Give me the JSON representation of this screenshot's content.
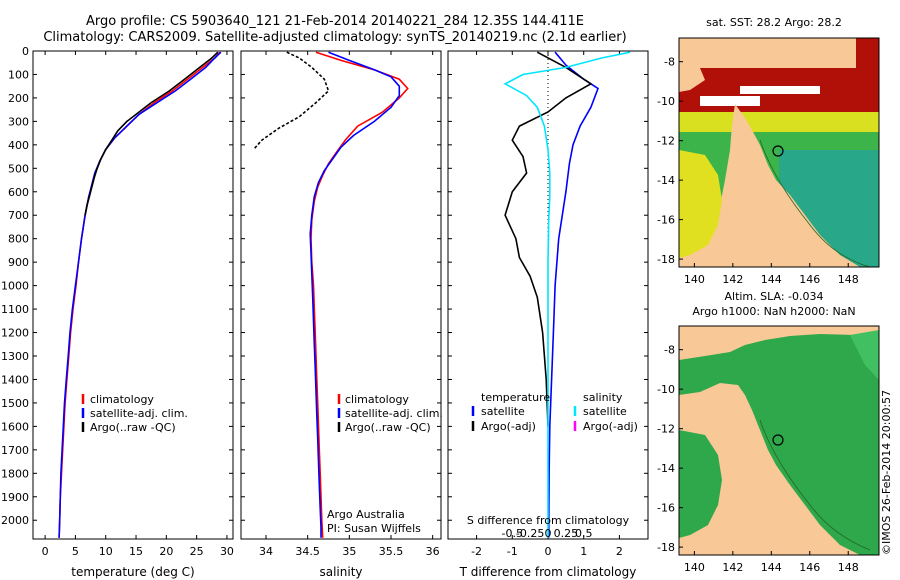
{
  "header": {
    "title_line1": "Argo profile: CS 5903640_121 21-Feb-2014 20140221_284 12.35S 144.411E",
    "title_line2": "Climatology: CARS2009. Satellite-adjusted climatology: synTS_20140219.nc (2.1d earlier)"
  },
  "colors": {
    "climatology": "#ff0000",
    "satellite": "#0000ff",
    "argo": "#000000",
    "salinity_satellite": "#00e5ff",
    "salinity_argo": "#ff00ff",
    "land": "#f8c896"
  },
  "chart_data": [
    {
      "type": "line",
      "xlabel": "temperature (deg C)",
      "xlim": [
        -2,
        31
      ],
      "ylim": [
        0,
        2080
      ],
      "xticks": [
        "0",
        "5",
        "10",
        "15",
        "20",
        "25",
        "30"
      ],
      "yticks": [
        "0",
        "100",
        "200",
        "300",
        "400",
        "500",
        "600",
        "700",
        "800",
        "900",
        "1000",
        "1100",
        "1200",
        "1300",
        "1400",
        "1500",
        "1600",
        "1700",
        "1800",
        "1900",
        "2000"
      ],
      "legend": [
        "climatology",
        "satellite-adj. clim.",
        "Argo(..raw -QC)"
      ],
      "series": [
        {
          "name": "climatology",
          "points": [
            [
              28.8,
              5
            ],
            [
              28,
              30
            ],
            [
              26,
              70
            ],
            [
              23.5,
              120
            ],
            [
              21,
              170
            ],
            [
              18,
              220
            ],
            [
              15.5,
              270
            ],
            [
              13.5,
              320
            ],
            [
              11.5,
              370
            ],
            [
              10,
              420
            ],
            [
              9,
              470
            ],
            [
              8.3,
              520
            ],
            [
              7.8,
              570
            ],
            [
              7.2,
              620
            ],
            [
              6.6,
              700
            ],
            [
              6,
              800
            ],
            [
              5.5,
              900
            ],
            [
              5.1,
              1000
            ],
            [
              4.6,
              1100
            ],
            [
              4.2,
              1200
            ],
            [
              3.9,
              1300
            ],
            [
              3.6,
              1400
            ],
            [
              3.3,
              1500
            ],
            [
              3.1,
              1600
            ],
            [
              2.9,
              1700
            ],
            [
              2.7,
              1800
            ],
            [
              2.5,
              1900
            ],
            [
              2.4,
              2000
            ],
            [
              2.3,
              2075
            ]
          ]
        },
        {
          "name": "satellite-adj. clim.",
          "points": [
            [
              29,
              5
            ],
            [
              28,
              30
            ],
            [
              26.5,
              70
            ],
            [
              24,
              120
            ],
            [
              21.5,
              170
            ],
            [
              18.5,
              220
            ],
            [
              15.5,
              270
            ],
            [
              13.5,
              320
            ],
            [
              11.5,
              370
            ],
            [
              10,
              420
            ],
            [
              9,
              470
            ],
            [
              8.2,
              520
            ],
            [
              7.7,
              570
            ],
            [
              7.2,
              620
            ],
            [
              6.6,
              700
            ],
            [
              6,
              800
            ],
            [
              5.5,
              900
            ],
            [
              5,
              1000
            ],
            [
              4.5,
              1100
            ],
            [
              4.1,
              1200
            ],
            [
              3.8,
              1300
            ],
            [
              3.5,
              1400
            ],
            [
              3.2,
              1500
            ],
            [
              3,
              1600
            ],
            [
              2.8,
              1700
            ],
            [
              2.6,
              1800
            ],
            [
              2.5,
              1900
            ],
            [
              2.4,
              2000
            ],
            [
              2.3,
              2075
            ]
          ]
        },
        {
          "name": "Argo(..raw -QC)",
          "points": [
            [
              28.5,
              5
            ],
            [
              27.5,
              30
            ],
            [
              25.5,
              70
            ],
            [
              23,
              120
            ],
            [
              20.5,
              170
            ],
            [
              17.5,
              220
            ],
            [
              15.5,
              260
            ],
            [
              13.5,
              300
            ],
            [
              12,
              340
            ],
            [
              11,
              380
            ],
            [
              10,
              420
            ],
            [
              9.2,
              460
            ],
            [
              8.6,
              500
            ],
            [
              8.1,
              540
            ],
            [
              7.7,
              580
            ],
            [
              7.3,
              620
            ],
            [
              6.9,
              660
            ],
            [
              6.6,
              700
            ]
          ]
        }
      ]
    },
    {
      "type": "line",
      "xlabel": "salinity",
      "xlim": [
        33.7,
        36.1
      ],
      "ylim": [
        0,
        2080
      ],
      "xticks": [
        "34",
        "34.5",
        "35",
        "35.5",
        "36"
      ],
      "legend": [
        "climatology",
        "satellite-adj. clim.",
        "Argo(..raw -QC)"
      ],
      "annotations": [
        "Argo Australia",
        "PI: Susan Wijffels"
      ],
      "series": [
        {
          "name": "climatology",
          "points": [
            [
              34.6,
              5
            ],
            [
              34.9,
              40
            ],
            [
              35.3,
              80
            ],
            [
              35.6,
              120
            ],
            [
              35.7,
              160
            ],
            [
              35.6,
              200
            ],
            [
              35.4,
              260
            ],
            [
              35.1,
              320
            ],
            [
              34.95,
              380
            ],
            [
              34.85,
              430
            ],
            [
              34.75,
              480
            ],
            [
              34.68,
              530
            ],
            [
              34.62,
              580
            ],
            [
              34.58,
              640
            ],
            [
              34.55,
              720
            ],
            [
              34.54,
              800
            ],
            [
              34.55,
              900
            ],
            [
              34.57,
              1000
            ],
            [
              34.58,
              1100
            ],
            [
              34.59,
              1200
            ],
            [
              34.6,
              1300
            ],
            [
              34.61,
              1400
            ],
            [
              34.62,
              1500
            ],
            [
              34.63,
              1600
            ],
            [
              34.64,
              1700
            ],
            [
              34.65,
              1800
            ],
            [
              34.66,
              1900
            ],
            [
              34.67,
              2000
            ],
            [
              34.68,
              2075
            ]
          ]
        },
        {
          "name": "satellite-adj. clim.",
          "points": [
            [
              34.75,
              5
            ],
            [
              35,
              40
            ],
            [
              35.3,
              80
            ],
            [
              35.5,
              110
            ],
            [
              35.6,
              150
            ],
            [
              35.6,
              190
            ],
            [
              35.5,
              240
            ],
            [
              35.3,
              300
            ],
            [
              35.05,
              360
            ],
            [
              34.9,
              410
            ],
            [
              34.8,
              460
            ],
            [
              34.7,
              510
            ],
            [
              34.63,
              560
            ],
            [
              34.58,
              620
            ],
            [
              34.55,
              700
            ],
            [
              34.53,
              780
            ],
            [
              34.54,
              860
            ],
            [
              34.55,
              950
            ],
            [
              34.56,
              1050
            ],
            [
              34.57,
              1150
            ],
            [
              34.58,
              1250
            ],
            [
              34.59,
              1350
            ],
            [
              34.6,
              1450
            ],
            [
              34.61,
              1550
            ],
            [
              34.62,
              1650
            ],
            [
              34.63,
              1750
            ],
            [
              34.64,
              1850
            ],
            [
              34.65,
              1950
            ],
            [
              34.66,
              2030
            ],
            [
              34.66,
              2075
            ]
          ]
        },
        {
          "name": "Argo(..raw -QC)",
          "points": [
            [
              34.25,
              5
            ],
            [
              34.4,
              30
            ],
            [
              34.55,
              70
            ],
            [
              34.7,
              120
            ],
            [
              34.75,
              170
            ],
            [
              34.6,
              220
            ],
            [
              34.4,
              280
            ],
            [
              34.15,
              330
            ],
            [
              33.95,
              380
            ],
            [
              33.85,
              420
            ]
          ]
        }
      ]
    },
    {
      "type": "line",
      "xlabel": "T difference from climatology",
      "xlabel_top": "S difference from climatology",
      "xlim": [
        -2.8,
        2.8
      ],
      "ylim": [
        0,
        2080
      ],
      "xticks": [
        "-2",
        "-1",
        "0",
        "1",
        "2"
      ],
      "xticks_top": [
        "-0.5",
        "-0.25",
        "0",
        "0.25",
        "0.5"
      ],
      "legend_groups": [
        {
          "heading": "temperature",
          "items": [
            "satellite",
            "Argo(-adj)"
          ]
        },
        {
          "heading": "salinity",
          "items": [
            "satellite",
            "Argo(-adj)"
          ]
        }
      ],
      "series": [
        {
          "name": "temperature satellite",
          "points": [
            [
              0.2,
              5
            ],
            [
              0.5,
              60
            ],
            [
              1,
              120
            ],
            [
              1.4,
              160
            ],
            [
              1.2,
              240
            ],
            [
              0.9,
              320
            ],
            [
              0.7,
              400
            ],
            [
              0.6,
              480
            ],
            [
              0.5,
              600
            ],
            [
              0.4,
              700
            ],
            [
              0.3,
              800
            ],
            [
              0.25,
              900
            ],
            [
              0.2,
              1000
            ],
            [
              0.15,
              1200
            ],
            [
              0.1,
              1400
            ],
            [
              0.05,
              1600
            ],
            [
              0.03,
              1800
            ],
            [
              0.02,
              2075
            ]
          ]
        },
        {
          "name": "temperature Argo(-adj)",
          "points": [
            [
              -0.3,
              5
            ],
            [
              0.5,
              70
            ],
            [
              1.2,
              140
            ],
            [
              0.5,
              200
            ],
            [
              0,
              260
            ],
            [
              -0.8,
              320
            ],
            [
              -1,
              380
            ],
            [
              -0.7,
              450
            ],
            [
              -0.6,
              520
            ],
            [
              -1,
              600
            ],
            [
              -1.2,
              700
            ],
            [
              -0.9,
              800
            ],
            [
              -0.8,
              880
            ],
            [
              -0.5,
              960
            ],
            [
              -0.3,
              1050
            ],
            [
              -0.15,
              1200
            ],
            [
              -0.05,
              1400
            ],
            [
              0,
              1600
            ]
          ]
        },
        {
          "name": "salinity satellite",
          "points": [
            [
              2.3,
              5
            ],
            [
              1.5,
              30
            ],
            [
              0.5,
              70
            ],
            [
              -0.7,
              100
            ],
            [
              -1.2,
              140
            ],
            [
              -0.6,
              190
            ],
            [
              -0.3,
              240
            ],
            [
              -0.1,
              320
            ],
            [
              0,
              420
            ],
            [
              0.05,
              520
            ],
            [
              0.05,
              620
            ],
            [
              0.02,
              720
            ],
            [
              0,
              900
            ],
            [
              0,
              1200
            ],
            [
              0,
              1500
            ],
            [
              0,
              1800
            ],
            [
              0,
              2075
            ]
          ]
        }
      ]
    }
  ],
  "map_top": {
    "title": "sat. SST: 28.2 Argo: 28.2",
    "xticks": [
      "140",
      "142",
      "144",
      "146",
      "148"
    ],
    "yticks": [
      "-8",
      "-10",
      "-12",
      "-14",
      "-16",
      "-18"
    ]
  },
  "map_bottom": {
    "title_line1": "Altim. SLA: -0.034",
    "title_line2": "Argo h1000: NaN h2000: NaN",
    "xticks": [
      "140",
      "142",
      "144",
      "146",
      "148"
    ],
    "yticks": [
      "-8",
      "-10",
      "-12",
      "-14",
      "-16",
      "-18"
    ]
  },
  "footer": {
    "stamp": "©IMOS 26-Feb-2014 20:00:57"
  }
}
